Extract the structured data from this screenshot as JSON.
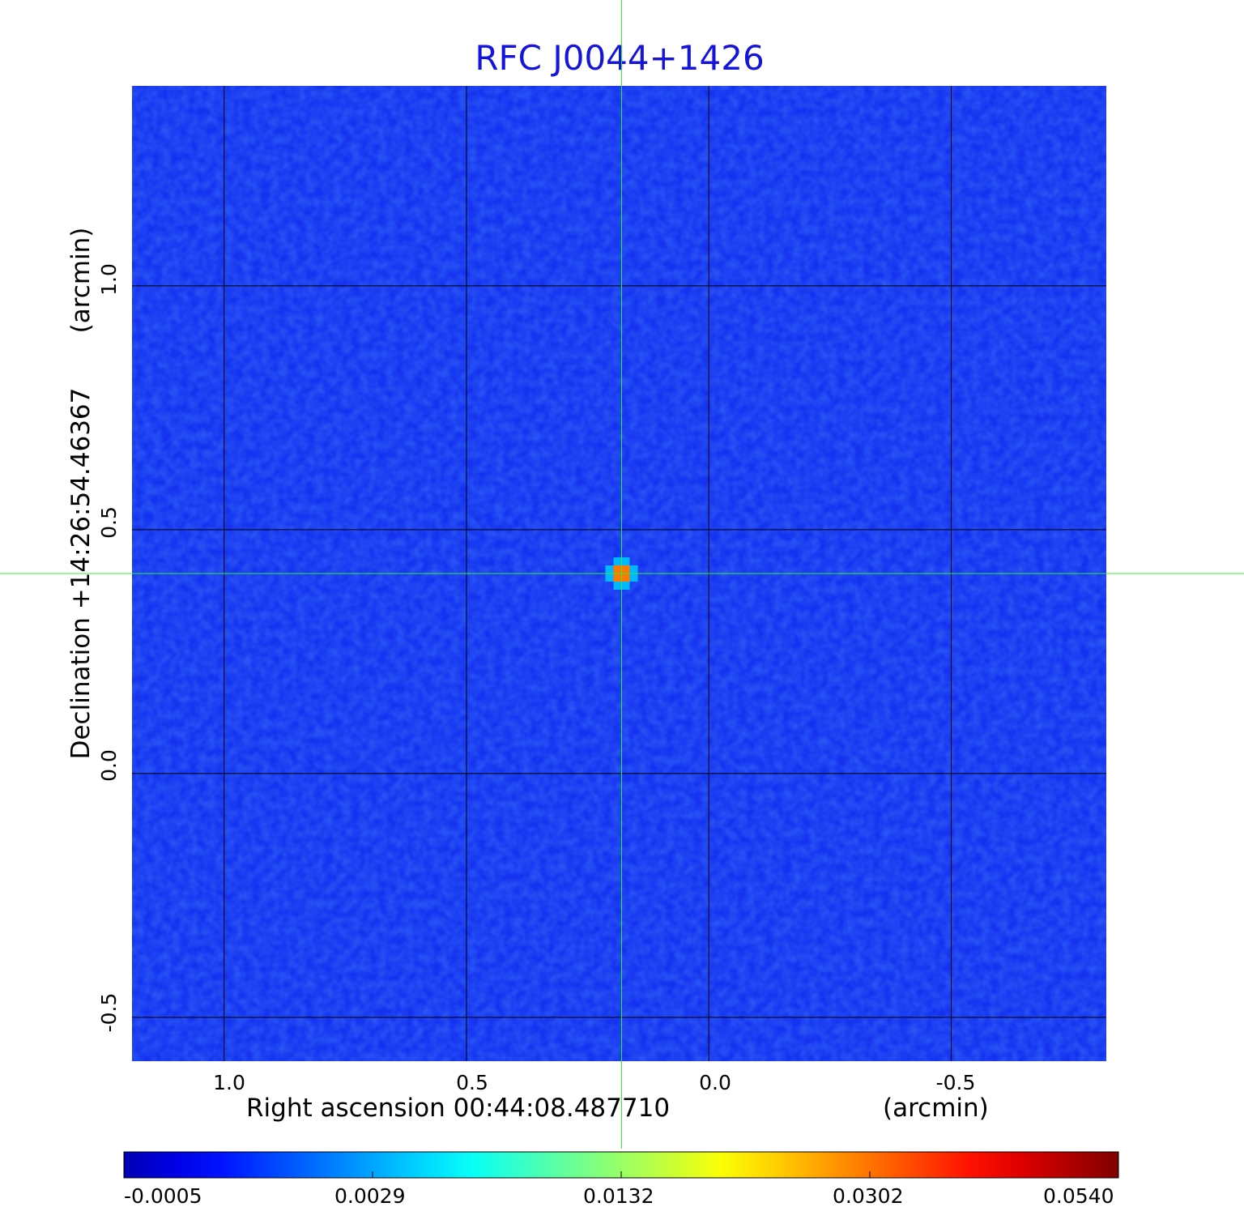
{
  "chart_data": {
    "type": "heatmap",
    "title": "RFC J0044+1426",
    "xlabel": "Right ascension  00:44:08.487710",
    "xunit": "(arcmin)",
    "ylabel": "Declination  +14:26:54.46367",
    "yunit": "(arcmin)",
    "xlim": [
      1.19,
      -0.82
    ],
    "ylim": [
      -0.59,
      1.41
    ],
    "x_ticks": [
      1.0,
      0.5,
      0.0,
      -0.5
    ],
    "x_tick_labels": [
      "1.0",
      "0.5",
      "0.0",
      "-0.5"
    ],
    "y_ticks": [
      1.0,
      0.5,
      0.0,
      -0.5
    ],
    "y_tick_labels": [
      "1.0",
      "0.5",
      "0.0",
      "-0.5"
    ],
    "grid": true,
    "crosshair": {
      "x": 0.18,
      "y": 0.41
    },
    "peak_source": {
      "x": 0.18,
      "y": 0.41
    },
    "colormap": "jet",
    "colorbar_ticks": [
      "-0.0005",
      "0.0029",
      "0.0132",
      "0.0302",
      "0.0540"
    ],
    "colorbar_min": -0.0005,
    "colorbar_max": 0.054
  },
  "colors": {
    "title": "#1414dc",
    "background_field": "#1432f0",
    "grid": "#000000",
    "crosshair": "#33ee33"
  }
}
